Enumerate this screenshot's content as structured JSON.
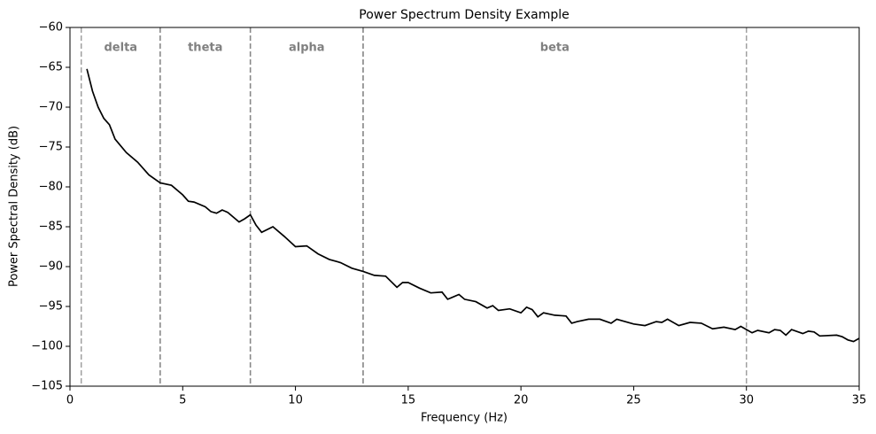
{
  "chart_data": {
    "type": "line",
    "title": "Power Spectrum Density Example",
    "x_label": "Frequency (Hz)",
    "y_label": "Power Spectral Density (dB)",
    "xlim": [
      0,
      35
    ],
    "ylim": [
      -105,
      -60
    ],
    "xticks": [
      0,
      5,
      10,
      15,
      20,
      25,
      30,
      35
    ],
    "yticks": [
      {
        "value": -105,
        "label": "−105"
      },
      {
        "value": -100,
        "label": "−100"
      },
      {
        "value": -95,
        "label": "−95"
      },
      {
        "value": -90,
        "label": "−90"
      },
      {
        "value": -85,
        "label": "−85"
      },
      {
        "value": -80,
        "label": "−80"
      },
      {
        "value": -75,
        "label": "−75"
      },
      {
        "value": -70,
        "label": "−70"
      },
      {
        "value": -65,
        "label": "−65"
      },
      {
        "value": -60,
        "label": "−60"
      }
    ],
    "bands": [
      {
        "name": "delta",
        "start": 0.5,
        "end": 4
      },
      {
        "name": "theta",
        "start": 4,
        "end": 8
      },
      {
        "name": "alpha",
        "start": 8,
        "end": 13
      },
      {
        "name": "beta",
        "start": 13,
        "end": 30
      }
    ],
    "band_line_color": "#808080",
    "series": [
      {
        "color": "#000000",
        "x": [
          0.75,
          1.0,
          1.25,
          1.5,
          1.75,
          2.0,
          2.5,
          3.0,
          3.5,
          4.0,
          4.5,
          5.0,
          5.25,
          5.5,
          6.0,
          6.25,
          6.5,
          6.75,
          7.0,
          7.5,
          7.75,
          8.0,
          8.25,
          8.5,
          9.0,
          9.5,
          10.0,
          10.5,
          11.0,
          11.5,
          12.0,
          12.5,
          13.0,
          13.5,
          14.0,
          14.5,
          14.75,
          15.0,
          15.5,
          16.0,
          16.5,
          16.75,
          17.25,
          17.5,
          18.0,
          18.5,
          18.75,
          19.0,
          19.5,
          20.0,
          20.25,
          20.5,
          20.75,
          21.0,
          21.5,
          22.0,
          22.25,
          22.5,
          23.0,
          23.5,
          24.0,
          24.25,
          25.0,
          25.5,
          26.0,
          26.25,
          26.5,
          27.0,
          27.5,
          28.0,
          28.5,
          29.0,
          29.5,
          29.75,
          30.25,
          30.5,
          31.0,
          31.25,
          31.5,
          31.75,
          32.0,
          32.5,
          32.75,
          33.0,
          33.25,
          34.0,
          34.25,
          34.5,
          34.75,
          35.0
        ],
        "values": [
          -65.2,
          -68.0,
          -70.0,
          -71.4,
          -72.2,
          -74.0,
          -75.7,
          -76.9,
          -78.5,
          -79.5,
          -79.8,
          -81.0,
          -81.8,
          -81.9,
          -82.5,
          -83.1,
          -83.3,
          -82.9,
          -83.2,
          -84.4,
          -84.0,
          -83.5,
          -84.8,
          -85.7,
          -85.0,
          -86.2,
          -87.5,
          -87.4,
          -88.4,
          -89.1,
          -89.5,
          -90.2,
          -90.6,
          -91.1,
          -91.2,
          -92.6,
          -92.0,
          -92.0,
          -92.7,
          -93.3,
          -93.2,
          -94.1,
          -93.5,
          -94.1,
          -94.4,
          -95.2,
          -94.9,
          -95.5,
          -95.3,
          -95.8,
          -95.1,
          -95.4,
          -96.3,
          -95.8,
          -96.1,
          -96.2,
          -97.1,
          -96.9,
          -96.6,
          -96.6,
          -97.1,
          -96.6,
          -97.2,
          -97.4,
          -96.9,
          -97.0,
          -96.6,
          -97.4,
          -97.0,
          -97.1,
          -97.8,
          -97.6,
          -97.9,
          -97.5,
          -98.3,
          -98.0,
          -98.3,
          -97.9,
          -98.0,
          -98.6,
          -97.9,
          -98.4,
          -98.1,
          -98.2,
          -98.7,
          -98.6,
          -98.8,
          -99.2,
          -99.4,
          -99.0
        ]
      }
    ]
  }
}
